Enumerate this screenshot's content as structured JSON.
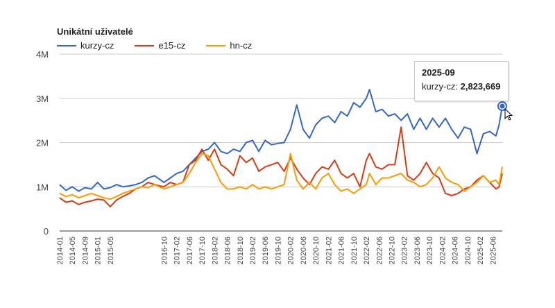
{
  "chart_data": {
    "type": "line",
    "title": "Unikátní uživatelé",
    "ylim": [
      0,
      4000000
    ],
    "yticks": [
      {
        "value": 0,
        "label": "0"
      },
      {
        "value": 1000000,
        "label": "1M"
      },
      {
        "value": 2000000,
        "label": "2M"
      },
      {
        "value": 3000000,
        "label": "3M"
      },
      {
        "value": 4000000,
        "label": "4M"
      }
    ],
    "x_start": "2014-01",
    "x_end": "2025-09",
    "x_tick_labels": [
      "2014-01",
      "2014-05",
      "2014-09",
      "2015-01",
      "2015-05",
      "2016-10",
      "2017-02",
      "2017-06",
      "2017-10",
      "2018-02",
      "2018-06",
      "2018-10",
      "2019-02",
      "2019-06",
      "2019-10",
      "2020-02",
      "2020-06",
      "2020-10",
      "2021-02",
      "2021-06",
      "2021-10",
      "2022-02",
      "2022-06",
      "2022-10",
      "2023-02",
      "2023-06",
      "2023-10",
      "2024-02",
      "2024-06",
      "2024-10",
      "2025-02",
      "2025-06"
    ],
    "legend_position": "top-left",
    "series": [
      {
        "name": "kurzy-cz",
        "color": "#3366cc",
        "points": [
          [
            "2014-01",
            1.05
          ],
          [
            "2014-03",
            0.92
          ],
          [
            "2014-05",
            1.0
          ],
          [
            "2014-07",
            0.9
          ],
          [
            "2014-09",
            0.98
          ],
          [
            "2014-11",
            0.95
          ],
          [
            "2015-01",
            1.1
          ],
          [
            "2015-03",
            0.95
          ],
          [
            "2015-05",
            0.98
          ],
          [
            "2015-07",
            1.05
          ],
          [
            "2015-09",
            1.0
          ],
          [
            "2015-11",
            1.02
          ],
          [
            "2016-01",
            1.05
          ],
          [
            "2016-03",
            1.1
          ],
          [
            "2016-05",
            1.2
          ],
          [
            "2016-07",
            1.25
          ],
          [
            "2016-10",
            1.1
          ],
          [
            "2016-12",
            1.2
          ],
          [
            "2017-02",
            1.3
          ],
          [
            "2017-04",
            1.35
          ],
          [
            "2017-06",
            1.5
          ],
          [
            "2017-08",
            1.65
          ],
          [
            "2017-10",
            1.8
          ],
          [
            "2017-12",
            1.85
          ],
          [
            "2018-02",
            2.0
          ],
          [
            "2018-04",
            1.8
          ],
          [
            "2018-06",
            1.75
          ],
          [
            "2018-08",
            1.85
          ],
          [
            "2018-10",
            1.8
          ],
          [
            "2018-12",
            2.0
          ],
          [
            "2019-02",
            2.05
          ],
          [
            "2019-04",
            1.8
          ],
          [
            "2019-06",
            2.05
          ],
          [
            "2019-08",
            1.95
          ],
          [
            "2019-10",
            1.98
          ],
          [
            "2019-12",
            2.0
          ],
          [
            "2020-02",
            2.3
          ],
          [
            "2020-04",
            2.85
          ],
          [
            "2020-06",
            2.3
          ],
          [
            "2020-08",
            2.1
          ],
          [
            "2020-10",
            2.4
          ],
          [
            "2020-12",
            2.55
          ],
          [
            "2021-02",
            2.6
          ],
          [
            "2021-04",
            2.45
          ],
          [
            "2021-06",
            2.7
          ],
          [
            "2021-08",
            2.6
          ],
          [
            "2021-10",
            2.9
          ],
          [
            "2021-12",
            2.8
          ],
          [
            "2022-02",
            3.0
          ],
          [
            "2022-03",
            3.2
          ],
          [
            "2022-05",
            2.7
          ],
          [
            "2022-07",
            2.75
          ],
          [
            "2022-09",
            2.6
          ],
          [
            "2022-11",
            2.65
          ],
          [
            "2023-01",
            2.5
          ],
          [
            "2023-03",
            2.65
          ],
          [
            "2023-05",
            2.3
          ],
          [
            "2023-07",
            2.55
          ],
          [
            "2023-09",
            2.3
          ],
          [
            "2023-11",
            2.55
          ],
          [
            "2024-01",
            2.35
          ],
          [
            "2024-03",
            2.55
          ],
          [
            "2024-05",
            2.3
          ],
          [
            "2024-07",
            2.1
          ],
          [
            "2024-09",
            2.35
          ],
          [
            "2024-11",
            2.3
          ],
          [
            "2025-01",
            1.75
          ],
          [
            "2025-03",
            2.2
          ],
          [
            "2025-05",
            2.25
          ],
          [
            "2025-07",
            2.15
          ],
          [
            "2025-08",
            2.4
          ],
          [
            "2025-09",
            2.823669
          ]
        ]
      },
      {
        "name": "e15-cz",
        "color": "#dc3912",
        "points": [
          [
            "2014-01",
            0.75
          ],
          [
            "2014-03",
            0.65
          ],
          [
            "2014-05",
            0.68
          ],
          [
            "2014-07",
            0.6
          ],
          [
            "2014-09",
            0.65
          ],
          [
            "2014-11",
            0.68
          ],
          [
            "2015-01",
            0.72
          ],
          [
            "2015-03",
            0.7
          ],
          [
            "2015-05",
            0.55
          ],
          [
            "2015-07",
            0.7
          ],
          [
            "2015-09",
            0.78
          ],
          [
            "2015-11",
            0.85
          ],
          [
            "2016-01",
            0.95
          ],
          [
            "2016-03",
            1.0
          ],
          [
            "2016-05",
            1.1
          ],
          [
            "2016-07",
            1.05
          ],
          [
            "2016-10",
            1.0
          ],
          [
            "2016-12",
            1.1
          ],
          [
            "2017-02",
            1.05
          ],
          [
            "2017-04",
            1.1
          ],
          [
            "2017-06",
            1.5
          ],
          [
            "2017-08",
            1.6
          ],
          [
            "2017-10",
            1.85
          ],
          [
            "2017-12",
            1.6
          ],
          [
            "2018-02",
            1.85
          ],
          [
            "2018-04",
            1.5
          ],
          [
            "2018-06",
            1.4
          ],
          [
            "2018-08",
            1.25
          ],
          [
            "2018-10",
            1.7
          ],
          [
            "2018-12",
            1.55
          ],
          [
            "2019-02",
            1.65
          ],
          [
            "2019-04",
            1.35
          ],
          [
            "2019-06",
            1.45
          ],
          [
            "2019-08",
            1.5
          ],
          [
            "2019-10",
            1.55
          ],
          [
            "2019-12",
            1.35
          ],
          [
            "2020-02",
            1.65
          ],
          [
            "2020-04",
            1.4
          ],
          [
            "2020-06",
            1.2
          ],
          [
            "2020-08",
            1.05
          ],
          [
            "2020-10",
            1.3
          ],
          [
            "2020-12",
            1.45
          ],
          [
            "2021-02",
            1.4
          ],
          [
            "2021-04",
            1.6
          ],
          [
            "2021-06",
            1.3
          ],
          [
            "2021-08",
            1.2
          ],
          [
            "2021-10",
            1.3
          ],
          [
            "2021-12",
            1.0
          ],
          [
            "2022-02",
            1.6
          ],
          [
            "2022-03",
            1.75
          ],
          [
            "2022-05",
            1.45
          ],
          [
            "2022-07",
            1.4
          ],
          [
            "2022-09",
            1.5
          ],
          [
            "2022-11",
            1.5
          ],
          [
            "2023-01",
            2.35
          ],
          [
            "2023-03",
            1.25
          ],
          [
            "2023-05",
            1.15
          ],
          [
            "2023-07",
            1.3
          ],
          [
            "2023-09",
            1.55
          ],
          [
            "2023-11",
            1.3
          ],
          [
            "2024-01",
            1.2
          ],
          [
            "2024-03",
            0.85
          ],
          [
            "2024-05",
            0.8
          ],
          [
            "2024-07",
            0.85
          ],
          [
            "2024-09",
            0.95
          ],
          [
            "2024-11",
            1.0
          ],
          [
            "2025-01",
            1.15
          ],
          [
            "2025-03",
            1.25
          ],
          [
            "2025-05",
            1.1
          ],
          [
            "2025-07",
            0.95
          ],
          [
            "2025-08",
            1.0
          ],
          [
            "2025-09",
            1.3
          ]
        ]
      },
      {
        "name": "hn-cz",
        "color": "#ff9900",
        "points": [
          [
            "2014-01",
            0.85
          ],
          [
            "2014-03",
            0.78
          ],
          [
            "2014-05",
            0.82
          ],
          [
            "2014-07",
            0.75
          ],
          [
            "2014-09",
            0.8
          ],
          [
            "2014-11",
            0.85
          ],
          [
            "2015-01",
            0.8
          ],
          [
            "2015-03",
            0.75
          ],
          [
            "2015-05",
            0.72
          ],
          [
            "2015-07",
            0.78
          ],
          [
            "2015-09",
            0.85
          ],
          [
            "2015-11",
            0.9
          ],
          [
            "2016-01",
            0.95
          ],
          [
            "2016-03",
            1.0
          ],
          [
            "2016-05",
            0.98
          ],
          [
            "2016-07",
            1.05
          ],
          [
            "2016-10",
            0.95
          ],
          [
            "2016-12",
            1.0
          ],
          [
            "2017-02",
            1.05
          ],
          [
            "2017-04",
            1.1
          ],
          [
            "2017-06",
            1.3
          ],
          [
            "2017-08",
            1.55
          ],
          [
            "2017-10",
            1.75
          ],
          [
            "2017-12",
            1.7
          ],
          [
            "2018-02",
            1.4
          ],
          [
            "2018-04",
            1.1
          ],
          [
            "2018-06",
            0.95
          ],
          [
            "2018-08",
            0.95
          ],
          [
            "2018-10",
            1.0
          ],
          [
            "2018-12",
            0.95
          ],
          [
            "2019-02",
            1.05
          ],
          [
            "2019-04",
            0.95
          ],
          [
            "2019-06",
            1.0
          ],
          [
            "2019-08",
            0.95
          ],
          [
            "2019-10",
            1.0
          ],
          [
            "2019-12",
            1.05
          ],
          [
            "2020-02",
            1.75
          ],
          [
            "2020-04",
            1.15
          ],
          [
            "2020-06",
            0.95
          ],
          [
            "2020-08",
            1.1
          ],
          [
            "2020-10",
            0.95
          ],
          [
            "2020-12",
            1.2
          ],
          [
            "2021-02",
            1.3
          ],
          [
            "2021-04",
            1.05
          ],
          [
            "2021-06",
            0.9
          ],
          [
            "2021-08",
            0.95
          ],
          [
            "2021-10",
            0.85
          ],
          [
            "2021-12",
            0.95
          ],
          [
            "2022-02",
            1.05
          ],
          [
            "2022-03",
            1.3
          ],
          [
            "2022-05",
            1.05
          ],
          [
            "2022-07",
            1.2
          ],
          [
            "2022-09",
            1.2
          ],
          [
            "2022-11",
            1.25
          ],
          [
            "2023-01",
            1.3
          ],
          [
            "2023-03",
            1.15
          ],
          [
            "2023-05",
            1.1
          ],
          [
            "2023-07",
            1.0
          ],
          [
            "2023-09",
            1.05
          ],
          [
            "2023-11",
            1.2
          ],
          [
            "2024-01",
            1.45
          ],
          [
            "2024-03",
            1.2
          ],
          [
            "2024-05",
            1.1
          ],
          [
            "2024-07",
            1.05
          ],
          [
            "2024-09",
            0.9
          ],
          [
            "2024-11",
            1.0
          ],
          [
            "2025-01",
            1.1
          ],
          [
            "2025-03",
            1.25
          ],
          [
            "2025-05",
            1.1
          ],
          [
            "2025-07",
            1.15
          ],
          [
            "2025-08",
            1.05
          ],
          [
            "2025-09",
            1.45
          ]
        ]
      }
    ],
    "y_unit_scale": 1000000
  },
  "tooltip": {
    "title": "2025-09",
    "series_label": "kurzy-cz:",
    "value": "2,823,669"
  }
}
